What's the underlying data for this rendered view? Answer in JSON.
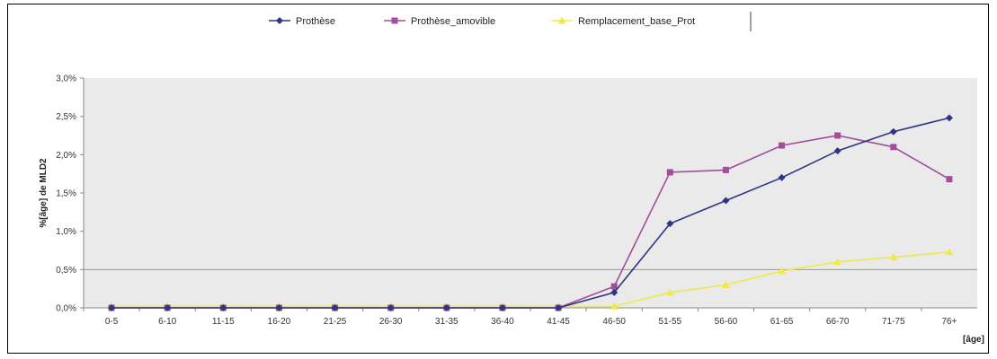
{
  "chart_data": {
    "type": "line",
    "title": "",
    "xlabel": "[âge]",
    "ylabel": "%[âge] de MLD2",
    "categories": [
      "0-5",
      "6-10",
      "11-15",
      "16-20",
      "21-25",
      "26-30",
      "31-35",
      "36-40",
      "41-45",
      "46-50",
      "51-55",
      "56-60",
      "61-65",
      "66-70",
      "71-75",
      "76+"
    ],
    "ylim": [
      0,
      3.0
    ],
    "yticks": [
      "0,0%",
      "0,5%",
      "1,0%",
      "1,5%",
      "2,0%",
      "2,5%",
      "3,0%"
    ],
    "ytick_values": [
      0,
      0.5,
      1.0,
      1.5,
      2.0,
      2.5,
      3.0
    ],
    "reference_line": 0.5,
    "grid": false,
    "legend_position": "top",
    "series": [
      {
        "name": "Prothèse",
        "color": "#2e3586",
        "marker": "diamond",
        "values": [
          0,
          0,
          0,
          0,
          0,
          0,
          0,
          0,
          0,
          0.2,
          1.1,
          1.4,
          1.7,
          2.05,
          2.3,
          2.48
        ]
      },
      {
        "name": "Prothèse_amovible",
        "color": "#a0509a",
        "marker": "square",
        "values": [
          0,
          0,
          0,
          0,
          0,
          0,
          0,
          0,
          0,
          0.28,
          1.77,
          1.8,
          2.12,
          2.25,
          2.1,
          1.68
        ]
      },
      {
        "name": "Remplacement_base_Prot",
        "color": "#f0e94a",
        "marker": "triangle",
        "values": [
          0.02,
          0.02,
          0.02,
          0.02,
          0.02,
          0.02,
          0.02,
          0.02,
          0.02,
          0.02,
          0.2,
          0.3,
          0.48,
          0.6,
          0.66,
          0.73
        ]
      }
    ]
  },
  "colors": {
    "plot_background": "#eaeaea",
    "reference_line": "#999999",
    "axis": "#888888"
  }
}
